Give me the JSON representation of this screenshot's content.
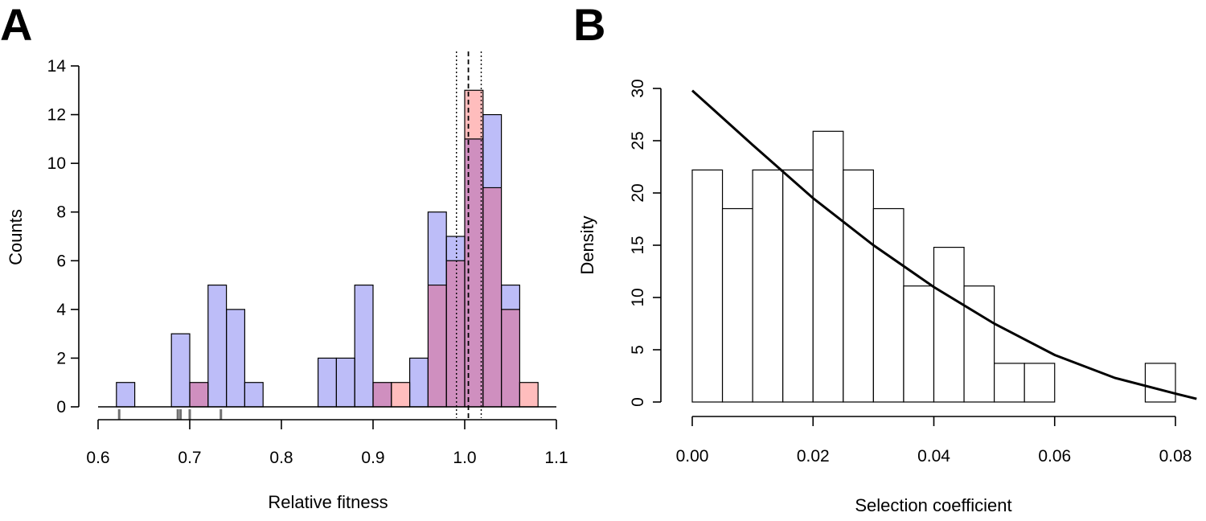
{
  "chart_data": [
    {
      "panel": "A",
      "type": "bar",
      "title": "",
      "xlabel": "Relative fitness",
      "ylabel": "Counts",
      "xlim": [
        0.6,
        1.1
      ],
      "ylim": [
        0,
        14
      ],
      "x_ticks": [
        "0.6",
        "0.7",
        "0.8",
        "0.9",
        "1.0",
        "1.1"
      ],
      "y_ticks": [
        "0",
        "2",
        "4",
        "6",
        "8",
        "10",
        "12",
        "14"
      ],
      "bin_width": 0.02,
      "bin_starts": [
        0.62,
        0.64,
        0.66,
        0.68,
        0.7,
        0.72,
        0.74,
        0.76,
        0.78,
        0.8,
        0.82,
        0.84,
        0.86,
        0.88,
        0.9,
        0.92,
        0.94,
        0.96,
        0.98,
        1.0,
        1.02,
        1.04,
        1.06
      ],
      "series": [
        {
          "name": "blue",
          "color": "#bdbdf8",
          "values": [
            1,
            0,
            0,
            3,
            1,
            5,
            4,
            1,
            0,
            0,
            0,
            2,
            2,
            5,
            1,
            0,
            2,
            8,
            7,
            11,
            12,
            5,
            0
          ]
        },
        {
          "name": "red",
          "color": "#ffbdbd",
          "values": [
            0,
            0,
            0,
            0,
            1,
            0,
            0,
            0,
            0,
            0,
            0,
            0,
            0,
            0,
            1,
            1,
            0,
            5,
            6,
            13,
            9,
            4,
            1
          ]
        }
      ],
      "overlap_color": "#cf8fbf",
      "rug": [
        0.623,
        0.687,
        0.69,
        0.7,
        0.734
      ],
      "vlines": [
        {
          "x": 0.991,
          "style": "dotted"
        },
        {
          "x": 1.004,
          "style": "dashed"
        },
        {
          "x": 1.018,
          "style": "dotted"
        }
      ]
    },
    {
      "panel": "B",
      "type": "bar",
      "title": "",
      "xlabel": "Selection coefficient",
      "ylabel": "Density",
      "xlim": [
        0,
        0.08
      ],
      "ylim": [
        0,
        30
      ],
      "x_ticks": [
        "0.00",
        "0.02",
        "0.04",
        "0.06",
        "0.08"
      ],
      "y_ticks": [
        "0",
        "5",
        "10",
        "15",
        "20",
        "25",
        "30"
      ],
      "bin_width": 0.005,
      "bin_starts": [
        0.0,
        0.005,
        0.01,
        0.015,
        0.02,
        0.025,
        0.03,
        0.035,
        0.04,
        0.045,
        0.05,
        0.055,
        0.06,
        0.065,
        0.07,
        0.075
      ],
      "values": [
        22.2,
        18.5,
        22.2,
        22.2,
        25.9,
        22.2,
        18.5,
        11.1,
        14.8,
        11.1,
        3.7,
        3.7,
        0,
        0,
        0,
        3.7
      ],
      "curve": {
        "x": [
          0.0,
          0.01,
          0.02,
          0.03,
          0.04,
          0.05,
          0.06,
          0.07,
          0.08,
          0.0835
        ],
        "y": [
          29.8,
          24.6,
          19.5,
          15.0,
          11.0,
          7.5,
          4.5,
          2.3,
          0.8,
          0.3
        ]
      }
    }
  ]
}
